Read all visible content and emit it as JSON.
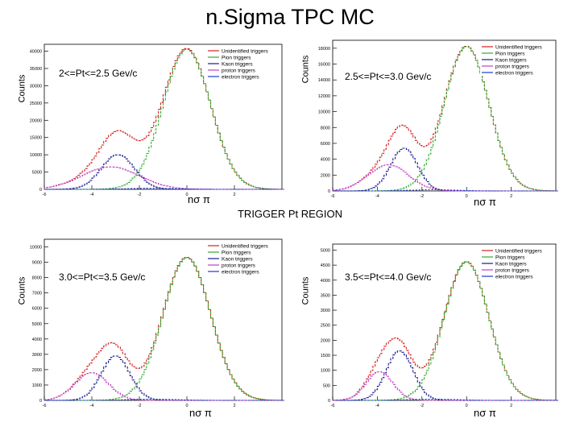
{
  "title": "n.Sigma TPC MC",
  "subtitle": "TRIGGER Pt REGION",
  "colors": {
    "unidentified": "#d42020",
    "pion": "#2fae2f",
    "kaon": "#1a1a8c",
    "proton": "#c040c0",
    "electron": "#1a3ad0"
  },
  "chart_data": [
    {
      "type": "line",
      "range_label": "2<=Pt<=2.5 Gev/c",
      "ylabel": "Counts",
      "xlabel": "nσ π",
      "xlim": [
        -6,
        4
      ],
      "ylim": [
        0,
        42000
      ],
      "x_ticks": [
        "-6",
        "-4",
        "-2",
        "0",
        "2"
      ],
      "y_ticks": [
        "0",
        "5000",
        "10000",
        "15000",
        "20000",
        "25000",
        "30000",
        "35000",
        "40000"
      ],
      "legend": [
        "Unidentified triggers",
        "Pion triggers",
        "Kaon triggers",
        "proton triggers",
        "electron triggers"
      ],
      "peaks": {
        "pion": {
          "a": 40500,
          "mu": 0.0,
          "s": 1.0
        },
        "kaon": {
          "a": 10000,
          "mu": -2.9,
          "s": 0.7
        },
        "proton": {
          "a": 6500,
          "mu": -3.2,
          "s": 1.2
        },
        "electron": {
          "a": 300,
          "mu": -1.5,
          "s": 1.0
        }
      }
    },
    {
      "type": "line",
      "range_label": "2.5<=Pt<=3.0 Gev/c",
      "ylabel": "Counts",
      "xlabel": "nσ π",
      "xlim": [
        -6,
        4
      ],
      "ylim": [
        0,
        19000
      ],
      "x_ticks": [
        "-6",
        "-4",
        "-2",
        "0",
        "2"
      ],
      "y_ticks": [
        "0",
        "2000",
        "4000",
        "6000",
        "8000",
        "10000",
        "12000",
        "14000",
        "16000",
        "18000"
      ],
      "legend": [
        "Unidentified triggers",
        "Pion triggers",
        "Kaon triggers",
        "proton triggers",
        "electron triggers"
      ],
      "peaks": {
        "pion": {
          "a": 18200,
          "mu": 0.0,
          "s": 1.0
        },
        "kaon": {
          "a": 5400,
          "mu": -2.8,
          "s": 0.6
        },
        "proton": {
          "a": 3300,
          "mu": -3.5,
          "s": 0.9
        },
        "electron": {
          "a": 150,
          "mu": -1.5,
          "s": 1.0
        }
      }
    },
    {
      "type": "line",
      "range_label": "3.0<=Pt<=3.5 Gev/c",
      "ylabel": "Counts",
      "xlabel": "nσ π",
      "xlim": [
        -6,
        4
      ],
      "ylim": [
        0,
        10500
      ],
      "x_ticks": [
        "-6",
        "-4",
        "-2",
        "0",
        "2"
      ],
      "y_ticks": [
        "0",
        "1000",
        "2000",
        "3000",
        "4000",
        "5000",
        "6000",
        "7000",
        "8000",
        "9000",
        "10000"
      ],
      "legend": [
        "Unidentified triggers",
        "Pion triggers",
        "Kaon triggers",
        "proton triggers",
        "electron triggers"
      ],
      "peaks": {
        "pion": {
          "a": 9300,
          "mu": 0.0,
          "s": 1.0
        },
        "kaon": {
          "a": 2900,
          "mu": -3.0,
          "s": 0.6
        },
        "proton": {
          "a": 1800,
          "mu": -4.0,
          "s": 0.7
        },
        "electron": {
          "a": 80,
          "mu": -1.5,
          "s": 1.0
        }
      }
    },
    {
      "type": "line",
      "range_label": "3.5<=Pt<=4.0 Gev/c",
      "ylabel": "Counts",
      "xlabel": "nσ π",
      "xlim": [
        -6,
        4
      ],
      "ylim": [
        0,
        5200
      ],
      "x_ticks": [
        "-6",
        "-4",
        "-2",
        "0",
        "2"
      ],
      "y_ticks": [
        "0",
        "500",
        "1000",
        "1500",
        "2000",
        "2500",
        "3000",
        "3500",
        "4000",
        "4500",
        "5000"
      ],
      "legend": [
        "Unidentified triggers",
        "Pion triggers",
        "Kaon triggers",
        "proton triggers",
        "electron triggers"
      ],
      "peaks": {
        "pion": {
          "a": 4600,
          "mu": 0.0,
          "s": 1.0
        },
        "kaon": {
          "a": 1650,
          "mu": -3.0,
          "s": 0.6
        },
        "proton": {
          "a": 950,
          "mu": -3.9,
          "s": 0.6
        },
        "electron": {
          "a": 40,
          "mu": -1.5,
          "s": 1.0
        }
      }
    }
  ]
}
